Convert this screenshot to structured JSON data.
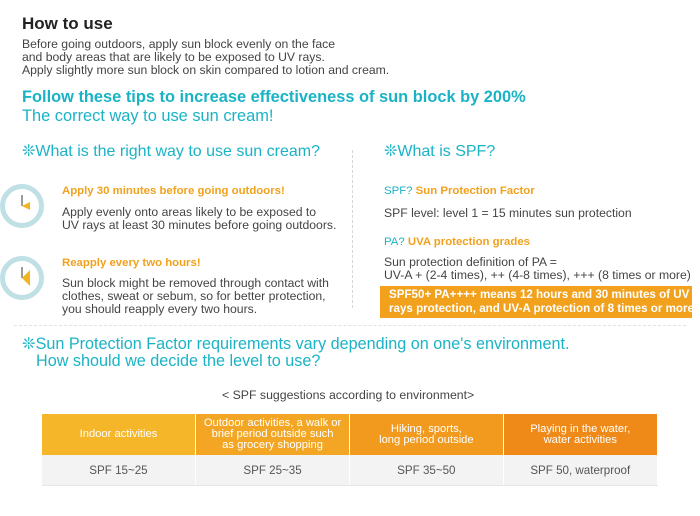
{
  "title": "How to use",
  "intro": [
    "Before going outdoors, apply sun block evenly on the face",
    "and body areas that are likely to be exposed to UV rays.",
    "Apply slightly more sun block on skin compared to lotion and cream."
  ],
  "tips_heading": {
    "line1": "Follow these tips to increase effectiveness of sun block by 200%",
    "line2": "The correct way to use sun cream!"
  },
  "left": {
    "heading": "❊What is the right way to use sun cream?",
    "tips": [
      {
        "title": "Apply 30 minutes before going outdoors!",
        "body": [
          "Apply evenly onto areas likely to be exposed to",
          "UV rays at least 30 minutes before going outdoors."
        ]
      },
      {
        "title": "Reapply every two hours!",
        "body": [
          "Sun block might be removed through contact with",
          "clothes, sweat or sebum, so for better protection,",
          "you should reapply every two hours."
        ]
      }
    ]
  },
  "right": {
    "heading": "❊What is SPF?",
    "spf_q": "SPF?",
    "spf_name": "Sun Protection Factor",
    "spf_level": "SPF level: level 1 = 15 minutes sun protection",
    "pa_q": "PA?",
    "pa_name": "UVA protection grades",
    "pa_body": [
      "Sun protection definition of PA =",
      "UV-A + (2-4 times), ++ (4-8 times), +++ (8 times or more)"
    ],
    "highlight": [
      "SPF50+ PA++++ means 12 hours and 30 minutes of UV",
      "rays protection, and UV-A protection of 8 times or more."
    ]
  },
  "environment": {
    "line1": "❊Sun Protection Factor requirements vary depending on one's environment.",
    "line2": "How should we decide the level to use?",
    "caption": "< SPF suggestions according to environment>",
    "headers": [
      [
        "Indoor activities"
      ],
      [
        "Outdoor activities, a walk or",
        "brief period outside such",
        "as grocery shopping"
      ],
      [
        "Hiking, sports,",
        "long period outside"
      ],
      [
        "Playing in the water,",
        "water activities"
      ]
    ],
    "values": [
      "SPF 15~25",
      "SPF 25~35",
      "SPF 35~50",
      "SPF 50, waterproof"
    ]
  },
  "colors": {
    "accent_teal": "#1ab3c6",
    "accent_orange": "#f2a11d",
    "clock_ring": "#bfe0e4"
  },
  "icons": [
    "clock-icon",
    "clock-icon"
  ]
}
